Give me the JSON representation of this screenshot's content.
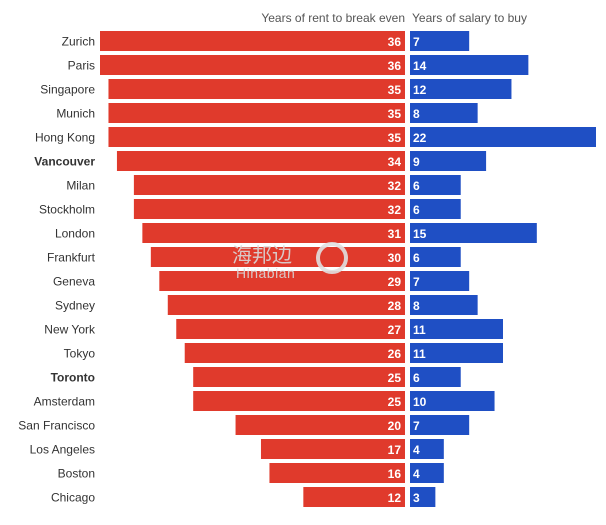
{
  "chart_data": {
    "type": "bar",
    "orientation": "horizontal-butterfly",
    "title": "",
    "categories": [
      "Zurich",
      "Paris",
      "Singapore",
      "Munich",
      "Hong Kong",
      "Vancouver",
      "Milan",
      "Stockholm",
      "London",
      "Frankfurt",
      "Geneva",
      "Sydney",
      "New York",
      "Tokyo",
      "Toronto",
      "Amsterdam",
      "San Francisco",
      "Los Angeles",
      "Boston",
      "Chicago"
    ],
    "bold_categories": [
      "Vancouver",
      "Toronto"
    ],
    "series": [
      {
        "name": "Years of rent to break even",
        "color": "#e03a2c",
        "side": "left",
        "values": [
          36,
          36,
          35,
          35,
          35,
          34,
          32,
          32,
          31,
          30,
          29,
          28,
          27,
          26,
          25,
          25,
          20,
          17,
          16,
          12
        ]
      },
      {
        "name": "Years of salary to buy",
        "color": "#1f4fc4",
        "side": "right",
        "values": [
          7,
          14,
          12,
          8,
          22,
          9,
          6,
          6,
          15,
          6,
          7,
          8,
          11,
          11,
          6,
          10,
          7,
          4,
          4,
          3
        ]
      }
    ],
    "legend": "top",
    "grid": false
  },
  "watermark": {
    "text_cn": "海邦边",
    "text_en": "Hinabian"
  }
}
